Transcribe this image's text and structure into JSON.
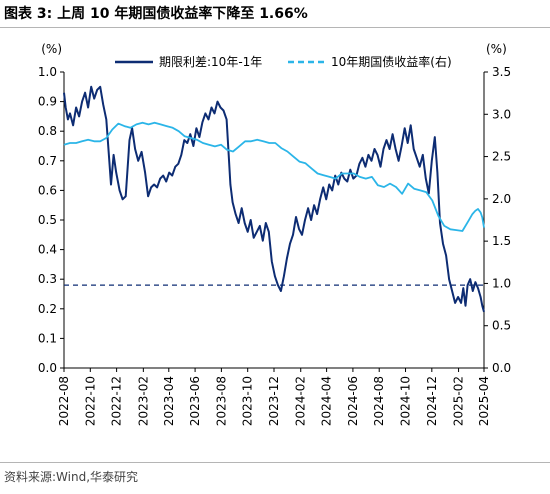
{
  "header": {
    "title": "图表 3:   上周 10 年期国债收益率下降至 1.66%"
  },
  "footer": {
    "source": "资料来源:Wind,华泰研究"
  },
  "chart_data": {
    "type": "line",
    "left_axis_unit": "(%)",
    "right_axis_unit": "(%)",
    "left_ylim": [
      0.0,
      1.0
    ],
    "right_ylim": [
      0.0,
      3.5
    ],
    "left_ticks": [
      "0.0",
      "0.1",
      "0.2",
      "0.3",
      "0.4",
      "0.5",
      "0.6",
      "0.7",
      "0.8",
      "0.9",
      "1.0"
    ],
    "right_ticks": [
      "0.0",
      "0.5",
      "1.0",
      "1.5",
      "2.0",
      "2.5",
      "3.0",
      "3.5"
    ],
    "x_ticks": [
      "2022-08",
      "2022-10",
      "2022-12",
      "2023-02",
      "2023-04",
      "2023-06",
      "2023-08",
      "2023-10",
      "2023-12",
      "2024-02",
      "2024-04",
      "2024-06",
      "2024-08",
      "2024-10",
      "2024-12",
      "2025-02",
      "2025-04"
    ],
    "x_range": [
      "2022-08-01",
      "2025-04-01"
    ],
    "grid": false,
    "legend_position": "top",
    "reference_line": {
      "axis": "right",
      "value": 0.98,
      "style": "dashed"
    },
    "series": [
      {
        "name": "期限利差:10年-1年",
        "axis": "left",
        "color": "#0d2c73",
        "style": "solid",
        "points": [
          [
            "2022-08-01",
            0.93
          ],
          [
            "2022-08-05",
            0.88
          ],
          [
            "2022-08-10",
            0.84
          ],
          [
            "2022-08-15",
            0.86
          ],
          [
            "2022-08-22",
            0.82
          ],
          [
            "2022-08-29",
            0.88
          ],
          [
            "2022-09-05",
            0.85
          ],
          [
            "2022-09-12",
            0.9
          ],
          [
            "2022-09-19",
            0.93
          ],
          [
            "2022-09-26",
            0.88
          ],
          [
            "2022-10-03",
            0.95
          ],
          [
            "2022-10-10",
            0.91
          ],
          [
            "2022-10-17",
            0.94
          ],
          [
            "2022-10-24",
            0.95
          ],
          [
            "2022-10-31",
            0.89
          ],
          [
            "2022-11-07",
            0.84
          ],
          [
            "2022-11-14",
            0.7
          ],
          [
            "2022-11-18",
            0.62
          ],
          [
            "2022-11-24",
            0.72
          ],
          [
            "2022-11-30",
            0.66
          ],
          [
            "2022-12-08",
            0.6
          ],
          [
            "2022-12-15",
            0.57
          ],
          [
            "2022-12-22",
            0.58
          ],
          [
            "2022-12-31",
            0.77
          ],
          [
            "2023-01-06",
            0.81
          ],
          [
            "2023-01-13",
            0.74
          ],
          [
            "2023-01-20",
            0.7
          ],
          [
            "2023-01-28",
            0.73
          ],
          [
            "2023-02-05",
            0.66
          ],
          [
            "2023-02-12",
            0.58
          ],
          [
            "2023-02-19",
            0.61
          ],
          [
            "2023-02-26",
            0.62
          ],
          [
            "2023-03-05",
            0.61
          ],
          [
            "2023-03-12",
            0.64
          ],
          [
            "2023-03-19",
            0.65
          ],
          [
            "2023-03-26",
            0.63
          ],
          [
            "2023-04-02",
            0.66
          ],
          [
            "2023-04-09",
            0.65
          ],
          [
            "2023-04-16",
            0.68
          ],
          [
            "2023-04-23",
            0.69
          ],
          [
            "2023-04-30",
            0.72
          ],
          [
            "2023-05-07",
            0.77
          ],
          [
            "2023-05-14",
            0.76
          ],
          [
            "2023-05-21",
            0.79
          ],
          [
            "2023-05-28",
            0.75
          ],
          [
            "2023-06-04",
            0.81
          ],
          [
            "2023-06-11",
            0.78
          ],
          [
            "2023-06-18",
            0.83
          ],
          [
            "2023-06-25",
            0.86
          ],
          [
            "2023-07-02",
            0.84
          ],
          [
            "2023-07-09",
            0.88
          ],
          [
            "2023-07-16",
            0.86
          ],
          [
            "2023-07-23",
            0.9
          ],
          [
            "2023-07-30",
            0.88
          ],
          [
            "2023-08-06",
            0.87
          ],
          [
            "2023-08-13",
            0.84
          ],
          [
            "2023-08-18",
            0.72
          ],
          [
            "2023-08-22",
            0.62
          ],
          [
            "2023-08-27",
            0.56
          ],
          [
            "2023-09-03",
            0.52
          ],
          [
            "2023-09-10",
            0.49
          ],
          [
            "2023-09-17",
            0.54
          ],
          [
            "2023-09-24",
            0.49
          ],
          [
            "2023-10-01",
            0.46
          ],
          [
            "2023-10-08",
            0.5
          ],
          [
            "2023-10-15",
            0.44
          ],
          [
            "2023-10-22",
            0.46
          ],
          [
            "2023-10-29",
            0.48
          ],
          [
            "2023-11-05",
            0.43
          ],
          [
            "2023-11-12",
            0.49
          ],
          [
            "2023-11-19",
            0.46
          ],
          [
            "2023-11-26",
            0.36
          ],
          [
            "2023-12-03",
            0.31
          ],
          [
            "2023-12-10",
            0.28
          ],
          [
            "2023-12-17",
            0.26
          ],
          [
            "2023-12-24",
            0.31
          ],
          [
            "2023-12-31",
            0.37
          ],
          [
            "2024-01-07",
            0.42
          ],
          [
            "2024-01-14",
            0.45
          ],
          [
            "2024-01-21",
            0.51
          ],
          [
            "2024-01-28",
            0.47
          ],
          [
            "2024-02-04",
            0.45
          ],
          [
            "2024-02-11",
            0.5
          ],
          [
            "2024-02-18",
            0.54
          ],
          [
            "2024-02-25",
            0.5
          ],
          [
            "2024-03-03",
            0.55
          ],
          [
            "2024-03-10",
            0.52
          ],
          [
            "2024-03-17",
            0.57
          ],
          [
            "2024-03-24",
            0.61
          ],
          [
            "2024-03-31",
            0.57
          ],
          [
            "2024-04-07",
            0.62
          ],
          [
            "2024-04-14",
            0.6
          ],
          [
            "2024-04-21",
            0.65
          ],
          [
            "2024-04-28",
            0.62
          ],
          [
            "2024-05-05",
            0.66
          ],
          [
            "2024-05-12",
            0.64
          ],
          [
            "2024-05-19",
            0.63
          ],
          [
            "2024-05-26",
            0.67
          ],
          [
            "2024-06-02",
            0.64
          ],
          [
            "2024-06-09",
            0.65
          ],
          [
            "2024-06-16",
            0.69
          ],
          [
            "2024-06-23",
            0.71
          ],
          [
            "2024-06-30",
            0.68
          ],
          [
            "2024-07-07",
            0.72
          ],
          [
            "2024-07-14",
            0.7
          ],
          [
            "2024-07-21",
            0.74
          ],
          [
            "2024-07-28",
            0.72
          ],
          [
            "2024-08-04",
            0.68
          ],
          [
            "2024-08-11",
            0.74
          ],
          [
            "2024-08-18",
            0.77
          ],
          [
            "2024-08-25",
            0.74
          ],
          [
            "2024-09-01",
            0.79
          ],
          [
            "2024-09-08",
            0.74
          ],
          [
            "2024-09-15",
            0.7
          ],
          [
            "2024-09-22",
            0.75
          ],
          [
            "2024-09-29",
            0.81
          ],
          [
            "2024-10-06",
            0.76
          ],
          [
            "2024-10-13",
            0.82
          ],
          [
            "2024-10-20",
            0.74
          ],
          [
            "2024-10-27",
            0.71
          ],
          [
            "2024-11-03",
            0.68
          ],
          [
            "2024-11-10",
            0.72
          ],
          [
            "2024-11-17",
            0.64
          ],
          [
            "2024-11-24",
            0.59
          ],
          [
            "2024-12-01",
            0.7
          ],
          [
            "2024-12-08",
            0.78
          ],
          [
            "2024-12-14",
            0.66
          ],
          [
            "2024-12-20",
            0.49
          ],
          [
            "2024-12-27",
            0.42
          ],
          [
            "2025-01-03",
            0.38
          ],
          [
            "2025-01-10",
            0.3
          ],
          [
            "2025-01-17",
            0.26
          ],
          [
            "2025-01-24",
            0.22
          ],
          [
            "2025-01-31",
            0.24
          ],
          [
            "2025-02-07",
            0.22
          ],
          [
            "2025-02-12",
            0.27
          ],
          [
            "2025-02-17",
            0.21
          ],
          [
            "2025-02-22",
            0.28
          ],
          [
            "2025-02-28",
            0.3
          ],
          [
            "2025-03-06",
            0.26
          ],
          [
            "2025-03-12",
            0.29
          ],
          [
            "2025-03-18",
            0.27
          ],
          [
            "2025-03-24",
            0.24
          ],
          [
            "2025-03-28",
            0.21
          ],
          [
            "2025-04-01",
            0.19
          ]
        ]
      },
      {
        "name": "10年期国债收益率(右)",
        "axis": "right",
        "color": "#2bb5e8",
        "style": "solid",
        "points": [
          [
            "2022-08-01",
            2.64
          ],
          [
            "2022-08-15",
            2.66
          ],
          [
            "2022-08-29",
            2.66
          ],
          [
            "2022-09-12",
            2.68
          ],
          [
            "2022-09-26",
            2.7
          ],
          [
            "2022-10-10",
            2.68
          ],
          [
            "2022-10-24",
            2.68
          ],
          [
            "2022-11-07",
            2.72
          ],
          [
            "2022-11-21",
            2.82
          ],
          [
            "2022-12-05",
            2.89
          ],
          [
            "2022-12-19",
            2.86
          ],
          [
            "2023-01-02",
            2.84
          ],
          [
            "2023-01-16",
            2.88
          ],
          [
            "2023-01-30",
            2.9
          ],
          [
            "2023-02-13",
            2.88
          ],
          [
            "2023-02-27",
            2.9
          ],
          [
            "2023-03-13",
            2.88
          ],
          [
            "2023-03-27",
            2.86
          ],
          [
            "2023-04-10",
            2.84
          ],
          [
            "2023-04-24",
            2.8
          ],
          [
            "2023-05-08",
            2.74
          ],
          [
            "2023-05-22",
            2.72
          ],
          [
            "2023-06-05",
            2.7
          ],
          [
            "2023-06-19",
            2.66
          ],
          [
            "2023-07-03",
            2.64
          ],
          [
            "2023-07-17",
            2.62
          ],
          [
            "2023-07-31",
            2.64
          ],
          [
            "2023-08-14",
            2.58
          ],
          [
            "2023-08-28",
            2.56
          ],
          [
            "2023-09-11",
            2.62
          ],
          [
            "2023-09-25",
            2.68
          ],
          [
            "2023-10-09",
            2.68
          ],
          [
            "2023-10-23",
            2.7
          ],
          [
            "2023-11-06",
            2.68
          ],
          [
            "2023-11-20",
            2.66
          ],
          [
            "2023-12-04",
            2.66
          ],
          [
            "2023-12-18",
            2.6
          ],
          [
            "2024-01-01",
            2.56
          ],
          [
            "2024-01-15",
            2.5
          ],
          [
            "2024-01-29",
            2.44
          ],
          [
            "2024-02-12",
            2.42
          ],
          [
            "2024-02-26",
            2.36
          ],
          [
            "2024-03-11",
            2.3
          ],
          [
            "2024-03-25",
            2.28
          ],
          [
            "2024-04-08",
            2.26
          ],
          [
            "2024-04-22",
            2.24
          ],
          [
            "2024-05-06",
            2.3
          ],
          [
            "2024-05-20",
            2.3
          ],
          [
            "2024-06-03",
            2.3
          ],
          [
            "2024-06-17",
            2.26
          ],
          [
            "2024-07-01",
            2.24
          ],
          [
            "2024-07-15",
            2.26
          ],
          [
            "2024-07-29",
            2.16
          ],
          [
            "2024-08-12",
            2.14
          ],
          [
            "2024-08-26",
            2.18
          ],
          [
            "2024-09-09",
            2.14
          ],
          [
            "2024-09-23",
            2.06
          ],
          [
            "2024-10-07",
            2.18
          ],
          [
            "2024-10-21",
            2.12
          ],
          [
            "2024-11-04",
            2.1
          ],
          [
            "2024-11-18",
            2.08
          ],
          [
            "2024-12-02",
            1.98
          ],
          [
            "2024-12-16",
            1.8
          ],
          [
            "2024-12-30",
            1.68
          ],
          [
            "2025-01-13",
            1.64
          ],
          [
            "2025-01-27",
            1.63
          ],
          [
            "2025-02-10",
            1.62
          ],
          [
            "2025-02-24",
            1.74
          ],
          [
            "2025-03-05",
            1.82
          ],
          [
            "2025-03-12",
            1.86
          ],
          [
            "2025-03-18",
            1.88
          ],
          [
            "2025-03-24",
            1.84
          ],
          [
            "2025-03-28",
            1.78
          ],
          [
            "2025-04-01",
            1.66
          ]
        ]
      }
    ]
  }
}
